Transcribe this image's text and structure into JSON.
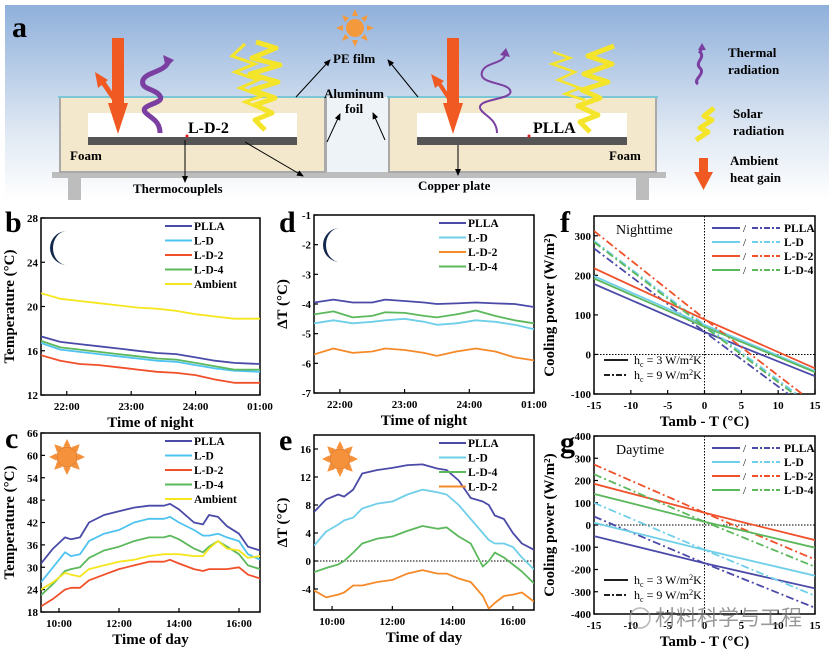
{
  "figure": {
    "panel_a": {
      "label": "a",
      "left_sample": "L-D-2",
      "right_sample": "PLLA",
      "labels": {
        "pe_film": "PE film",
        "aluminum_foil_line1": "Aluminum",
        "aluminum_foil_line2": "foil",
        "foam_left": "Foam",
        "foam_right": "Foam",
        "thermocouples": "Thermocouplels",
        "copper_plate": "Copper plate"
      },
      "legend": [
        {
          "icon": "thermal-radiation-icon",
          "line1": "Thermal",
          "line2": "radiation",
          "color": "#7a3fa0"
        },
        {
          "icon": "solar-radiation-icon",
          "line1": "Solar",
          "line2": "radiation",
          "color": "#f5e52a"
        },
        {
          "icon": "ambient-heat-arrow-icon",
          "line1": "Ambient",
          "line2": "heat gain",
          "color": "#f05a22"
        }
      ]
    },
    "watermark": "材料科学与工程"
  },
  "chart_data": [
    {
      "id": "b",
      "label": "b",
      "type": "line",
      "icon": "moon-icon",
      "xlabel": "Time of night",
      "ylabel": "Temperature (°C)",
      "xlim": [
        21.6,
        25.0
      ],
      "ylim": [
        12,
        28
      ],
      "xticks": [
        22,
        23,
        24,
        25
      ],
      "xtick_labels": [
        "22:00",
        "23:00",
        "24:00",
        "01:00"
      ],
      "yticks": [
        12,
        16,
        20,
        24,
        28
      ],
      "ytick_labels": [
        "12",
        "16",
        "20",
        "24",
        "28"
      ],
      "legend": "top-right",
      "x": [
        21.6,
        21.9,
        22.2,
        22.5,
        22.8,
        23.1,
        23.4,
        23.7,
        24.0,
        24.3,
        24.6,
        25.0
      ],
      "series": [
        {
          "name": "PLLA",
          "color": "#4b4aa8",
          "values": [
            17.3,
            16.8,
            16.6,
            16.4,
            16.2,
            16.0,
            15.8,
            15.7,
            15.4,
            15.1,
            14.9,
            14.8
          ]
        },
        {
          "name": "L-D",
          "color": "#4fc3ef",
          "values": [
            16.7,
            16.1,
            15.9,
            15.7,
            15.5,
            15.3,
            15.1,
            15.0,
            14.7,
            14.4,
            14.2,
            14.1
          ]
        },
        {
          "name": "L-D-2",
          "color": "#f0502a",
          "values": [
            15.6,
            15.1,
            14.8,
            14.7,
            14.5,
            14.3,
            14.1,
            14.0,
            13.8,
            13.4,
            13.1,
            13.1
          ]
        },
        {
          "name": "L-D-4",
          "color": "#5cb85c",
          "values": [
            16.9,
            16.3,
            16.1,
            15.9,
            15.7,
            15.5,
            15.3,
            15.2,
            14.9,
            14.6,
            14.3,
            14.3
          ]
        },
        {
          "name": "Ambient",
          "color": "#f5e61e",
          "values": [
            21.2,
            20.7,
            20.5,
            20.3,
            20.1,
            19.9,
            19.8,
            19.6,
            19.3,
            19.1,
            18.9,
            18.9
          ]
        }
      ]
    },
    {
      "id": "c",
      "label": "c",
      "type": "line",
      "icon": "sun-icon",
      "xlabel": "Time of day",
      "ylabel": "Temperature (°C)",
      "xlim": [
        9.4,
        16.7
      ],
      "ylim": [
        18,
        66
      ],
      "xticks": [
        10,
        12,
        14,
        16
      ],
      "xtick_labels": [
        "10:00",
        "12:00",
        "14:00",
        "16:00"
      ],
      "yticks": [
        18,
        24,
        30,
        36,
        42,
        48,
        54,
        60,
        66
      ],
      "ytick_labels": [
        "18",
        "24",
        "30",
        "36",
        "42",
        "48",
        "54",
        "60",
        "66"
      ],
      "legend": "top-right",
      "x": [
        9.4,
        9.8,
        10.2,
        10.4,
        10.7,
        11.0,
        11.5,
        12.0,
        12.5,
        13.0,
        13.5,
        13.7,
        14.0,
        14.5,
        14.8,
        15.0,
        15.3,
        15.6,
        16.0,
        16.3,
        16.7
      ],
      "series": [
        {
          "name": "PLLA",
          "color": "#4b4aa8",
          "values": [
            31,
            35,
            38,
            37.5,
            38,
            42,
            44,
            45,
            46,
            46.5,
            46.5,
            47,
            45.5,
            42,
            41.5,
            44,
            43.5,
            41,
            39,
            35.5,
            34.5
          ]
        },
        {
          "name": "L-D",
          "color": "#4fc3ef",
          "values": [
            26,
            30,
            34,
            33,
            33.5,
            37,
            39,
            40,
            42,
            43,
            43,
            43.5,
            42,
            40,
            38.5,
            38.5,
            39,
            38,
            37,
            33.5,
            32
          ]
        },
        {
          "name": "L-D-2",
          "color": "#f0502a",
          "values": [
            19.5,
            21.5,
            24,
            24.5,
            24.5,
            26.5,
            28,
            29.5,
            30.5,
            31.5,
            31.5,
            32,
            31,
            29.5,
            29,
            29.5,
            29.5,
            29.5,
            30,
            28,
            27
          ]
        },
        {
          "name": "L-D-4",
          "color": "#5cb85c",
          "values": [
            22.5,
            25.5,
            29,
            29.5,
            30,
            32.5,
            34.5,
            35.5,
            37,
            38,
            38,
            38.5,
            37.5,
            35,
            34,
            35.5,
            37,
            35.5,
            33.5,
            30.5,
            29.5
          ]
        },
        {
          "name": "Ambient",
          "color": "#f5e61e",
          "values": [
            24,
            26,
            28.5,
            28,
            27.5,
            29.5,
            30.5,
            31.5,
            32,
            33,
            33.5,
            33.5,
            33.5,
            33,
            33,
            35,
            37,
            35,
            34.5,
            32.5,
            33
          ]
        }
      ]
    },
    {
      "id": "d",
      "label": "d",
      "type": "line",
      "icon": "moon-icon",
      "xlabel": "Time of night",
      "ylabel": "ΔT (°C)",
      "xlim": [
        21.6,
        25.0
      ],
      "ylim": [
        -7,
        -1
      ],
      "xticks": [
        22,
        23,
        24,
        25
      ],
      "xtick_labels": [
        "22:00",
        "23:00",
        "24:00",
        "01:00"
      ],
      "yticks": [
        -7,
        -6,
        -5,
        -4,
        -3,
        -2,
        -1
      ],
      "ytick_labels": [
        "-7",
        "-6",
        "-5",
        "-4",
        "-3",
        "-2",
        "-1"
      ],
      "legend": "top-right",
      "x": [
        21.6,
        21.9,
        22.2,
        22.5,
        22.7,
        23.0,
        23.3,
        23.5,
        23.8,
        24.1,
        24.4,
        24.7,
        25.0
      ],
      "series": [
        {
          "name": "PLLA",
          "color": "#4b4aa8",
          "values": [
            -3.95,
            -3.85,
            -3.95,
            -3.95,
            -3.85,
            -3.9,
            -3.95,
            -4.0,
            -3.98,
            -3.95,
            -3.98,
            -4.0,
            -4.1
          ]
        },
        {
          "name": "L-D",
          "color": "#70cfe8",
          "values": [
            -4.65,
            -4.55,
            -4.65,
            -4.6,
            -4.55,
            -4.5,
            -4.6,
            -4.7,
            -4.65,
            -4.55,
            -4.6,
            -4.7,
            -4.85
          ]
        },
        {
          "name": "L-D-2",
          "color": "#f58a2a",
          "values": [
            -5.7,
            -5.5,
            -5.65,
            -5.6,
            -5.5,
            -5.55,
            -5.65,
            -5.75,
            -5.6,
            -5.5,
            -5.6,
            -5.8,
            -5.9
          ]
        },
        {
          "name": "L-D-4",
          "color": "#5cb85c",
          "values": [
            -4.35,
            -4.25,
            -4.45,
            -4.4,
            -4.28,
            -4.3,
            -4.4,
            -4.45,
            -4.35,
            -4.22,
            -4.4,
            -4.55,
            -4.65
          ]
        }
      ]
    },
    {
      "id": "e",
      "label": "e",
      "type": "line",
      "icon": "sun-icon",
      "xlabel": "Time of day",
      "ylabel": "ΔT (°C)",
      "xlim": [
        9.4,
        16.7
      ],
      "ylim": [
        -7,
        18
      ],
      "xticks": [
        10,
        12,
        14,
        16
      ],
      "xtick_labels": [
        "10:00",
        "12:00",
        "14:00",
        "16:00"
      ],
      "yticks": [
        -4,
        0,
        4,
        8,
        12,
        16
      ],
      "ytick_labels": [
        "-4",
        "0",
        "4",
        "8",
        "12",
        "16"
      ],
      "reference_line": 0,
      "legend": "top-right",
      "x": [
        9.4,
        9.8,
        10.2,
        10.4,
        10.7,
        11.0,
        11.5,
        12.0,
        12.5,
        13.0,
        13.5,
        13.8,
        14.2,
        14.6,
        15.0,
        15.2,
        15.4,
        15.7,
        16.0,
        16.3,
        16.7
      ],
      "series": [
        {
          "name": "PLLA",
          "color": "#4b4aa8",
          "values": [
            7,
            8.8,
            9.5,
            9.2,
            10.2,
            12.5,
            13,
            13.3,
            13.7,
            13.8,
            13.2,
            13,
            11.5,
            9,
            8.5,
            8,
            6.5,
            6,
            4,
            2.5,
            1.6
          ]
        },
        {
          "name": "L-D",
          "color": "#70cfe8",
          "values": [
            2.2,
            4.2,
            5.2,
            5.8,
            6.2,
            7.5,
            8.2,
            8.5,
            9.5,
            10.2,
            9.8,
            9.5,
            8,
            6,
            4,
            3,
            2.5,
            2.5,
            2,
            0.5,
            -1.2
          ]
        },
        {
          "name": "L-D-4",
          "color": "#5cb85c",
          "values": [
            -1.6,
            -1,
            -0.5,
            0,
            1.2,
            2.5,
            3.2,
            3.5,
            4.3,
            5,
            4.6,
            4.8,
            3.5,
            2.5,
            -0.8,
            0,
            1.2,
            0.5,
            -0.5,
            -1.5,
            -3.2
          ]
        },
        {
          "name": "L-D-2",
          "color": "#f58a2a",
          "values": [
            -4.2,
            -5.2,
            -4.8,
            -4.5,
            -3.5,
            -3.5,
            -3,
            -2.7,
            -1.8,
            -1.3,
            -1.8,
            -1.8,
            -2.5,
            -3,
            -5,
            -6.8,
            -6,
            -5,
            -4.8,
            -4.5,
            -5.8
          ]
        }
      ]
    },
    {
      "id": "f",
      "label": "f",
      "type": "line",
      "annotation": "Nighttime",
      "xlabel": "Tamb - T (°C)",
      "ylabel": "Cooling power (W/m²)",
      "xlim": [
        -15,
        15
      ],
      "ylim": [
        -100,
        350
      ],
      "xticks": [
        -15,
        -10,
        -5,
        0,
        5,
        10,
        15
      ],
      "xtick_labels": [
        "-15",
        "-10",
        "-5",
        "0",
        "5",
        "10",
        "15"
      ],
      "yticks": [
        -100,
        0,
        100,
        200,
        300
      ],
      "ytick_labels": [
        "-100",
        "0",
        "100",
        "200",
        "300"
      ],
      "reference_lines": {
        "x": 0,
        "y": 0
      },
      "legend": "top-right",
      "style_legend": [
        {
          "style": "solid",
          "text_main": "h",
          "text_sub": "c",
          "text_rest": " = 3 W/m",
          "text_sup": "2",
          "text_tail": "K"
        },
        {
          "style": "dash-dot",
          "text_main": "h",
          "text_sub": "c",
          "text_rest": " = 9 W/m",
          "text_sup": "2",
          "text_tail": "K"
        }
      ],
      "x": [
        -15,
        0,
        15
      ],
      "series": [
        {
          "name": "PLLA",
          "color": "#4b4aa8",
          "hc3": [
            178,
            57,
            -55
          ],
          "hc9": [
            268,
            57,
            -150
          ]
        },
        {
          "name": "L-D",
          "color": "#70cfe8",
          "hc3": [
            198,
            75,
            -42
          ],
          "hc9": [
            287,
            75,
            -135
          ]
        },
        {
          "name": "L-D-2",
          "color": "#f0502a",
          "hc3": [
            218,
            88,
            -35
          ],
          "hc9": [
            312,
            90,
            -125
          ]
        },
        {
          "name": "L-D-4",
          "color": "#5cb85c",
          "hc3": [
            192,
            70,
            -45
          ],
          "hc9": [
            284,
            70,
            -140
          ]
        }
      ],
      "legend_separator": "/"
    },
    {
      "id": "g",
      "label": "g",
      "type": "line",
      "annotation": "Daytime",
      "xlabel": "Tamb - T (°C)",
      "ylabel": "Cooling power (W/m²)",
      "xlim": [
        -15,
        15
      ],
      "ylim": [
        -400,
        400
      ],
      "xticks": [
        -15,
        -10,
        -5,
        0,
        5,
        10,
        15
      ],
      "xtick_labels": [
        "-15",
        "-10",
        "-5",
        "0",
        "5",
        "10",
        "15"
      ],
      "yticks": [
        -400,
        -300,
        -200,
        -100,
        0,
        100,
        200,
        300,
        400
      ],
      "ytick_labels": [
        "-400",
        "-300",
        "-200",
        "-100",
        "0",
        "100",
        "200",
        "300",
        "400"
      ],
      "reference_lines": {
        "x": 0,
        "y": 0
      },
      "legend": "top-right",
      "style_legend": [
        {
          "style": "solid",
          "text_main": "h",
          "text_sub": "c",
          "text_rest": " = 3 W/m",
          "text_sup": "2",
          "text_tail": "K"
        },
        {
          "style": "dash-dot",
          "text_main": "h",
          "text_sub": "c",
          "text_rest": " = 9 W/m",
          "text_sup": "2",
          "text_tail": "K"
        }
      ],
      "x": [
        -15,
        0,
        15
      ],
      "series": [
        {
          "name": "PLLA",
          "color": "#4b4aa8",
          "hc3": [
            -50,
            -172,
            -285
          ],
          "hc9": [
            38,
            -172,
            -372
          ]
        },
        {
          "name": "L-D",
          "color": "#70cfe8",
          "hc3": [
            10,
            -112,
            -228
          ],
          "hc9": [
            100,
            -112,
            -318
          ]
        },
        {
          "name": "L-D-2",
          "color": "#f0502a",
          "hc3": [
            185,
            55,
            -68
          ],
          "hc9": [
            272,
            55,
            -155
          ]
        },
        {
          "name": "L-D-4",
          "color": "#5cb85c",
          "hc3": [
            140,
            15,
            -102
          ],
          "hc9": [
            228,
            15,
            -188
          ]
        }
      ],
      "legend_separator": "/"
    }
  ]
}
